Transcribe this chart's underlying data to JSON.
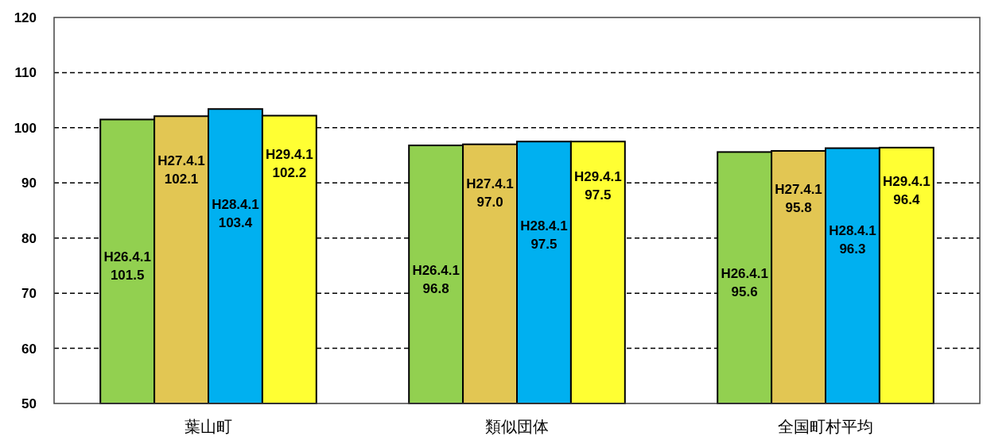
{
  "chart_data": {
    "type": "bar",
    "categories": [
      "葉山町",
      "類似団体",
      "全国町村平均"
    ],
    "series": [
      {
        "name": "H26.4.1",
        "color": "#92d050",
        "values": [
          101.5,
          96.8,
          95.6
        ],
        "value_labels": [
          "101.5",
          "96.8",
          "95.6"
        ]
      },
      {
        "name": "H27.4.1",
        "color": "#e2c653",
        "values": [
          102.1,
          97.0,
          95.8
        ],
        "value_labels": [
          "102.1",
          "97.0",
          "95.8"
        ]
      },
      {
        "name": "H28.4.1",
        "color": "#00b0f0",
        "values": [
          103.4,
          97.5,
          96.3
        ],
        "value_labels": [
          "103.4",
          "97.5",
          "96.3"
        ]
      },
      {
        "name": "H29.4.1",
        "color": "#ffff33",
        "values": [
          102.2,
          97.5,
          96.4
        ],
        "value_labels": [
          "102.2",
          "97.5",
          "96.4"
        ]
      }
    ],
    "ylim": [
      50,
      120
    ],
    "yticks": [
      50,
      60,
      70,
      80,
      90,
      100,
      110,
      120
    ],
    "grid": "y"
  }
}
